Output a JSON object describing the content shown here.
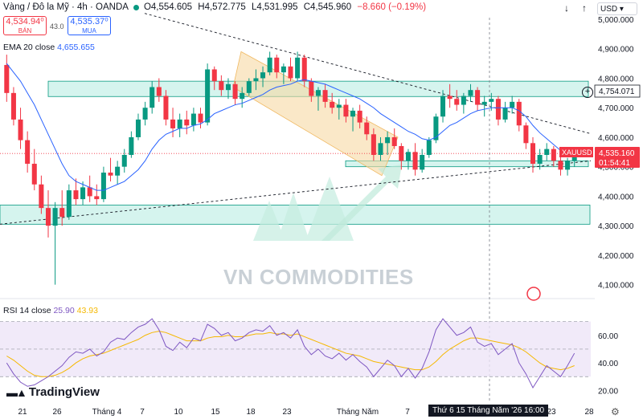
{
  "header": {
    "symbol": "Vàng / Đô la Mỹ · 4h · OANDA",
    "ohlc": {
      "o": "O4,554.605",
      "h": "H4,572.775",
      "l": "L4,531.995",
      "c": "C4,545.960",
      "chg": "−8.660 (−0.19%)"
    }
  },
  "trade": {
    "sell_price": "4,534.94⁰",
    "sell_label": "BÁN",
    "spread": "43.0",
    "buy_price": "4,535.37⁰",
    "buy_label": "MUA"
  },
  "toolbar": {
    "down_icon": "↓",
    "up_icon": "↑",
    "currency": "USD"
  },
  "ema_legend": {
    "label": "EMA 20 close",
    "value": "4,655.655"
  },
  "rsi_legend": {
    "label": "RSI 14 close",
    "value": "25.90",
    "ma_value": "43.93"
  },
  "price_axis": {
    "ticks": [
      "5,000.000",
      "4,900.000",
      "4,800.000",
      "4,700.000",
      "4,600.000",
      "4,500.000",
      "4,400.000",
      "4,300.000",
      "4,200.000",
      "4,100.000"
    ]
  },
  "badges": {
    "level": "4,754.071",
    "symbol": "XAUUSD",
    "price": "4,535.160",
    "countdown": "01:54:41"
  },
  "rsi_axis": {
    "ticks": [
      "60.00",
      "40.00",
      "20.00"
    ]
  },
  "time_axis": {
    "labels": [
      "21",
      "26",
      "Tháng 4",
      "7",
      "10",
      "15",
      "18",
      "23",
      "Tháng Năm",
      "7",
      "23",
      "28"
    ],
    "cursor_label": "Thứ 6 15 Tháng Năm '26   16:00"
  },
  "watermark": "VN COMMODITIES",
  "brand": "TradingView",
  "colors": {
    "up": "#089981",
    "down": "#f23645",
    "ema": "#2962ff",
    "zone": "#b2ebe0",
    "channel": "#f7d9a3",
    "rsi": "#7e57c2",
    "rsi_ma": "#f5b800",
    "rsi_band": "#ede5f7"
  },
  "chart_data": {
    "type": "candlestick",
    "symbol": "XAUUSD",
    "timeframe": "4h",
    "y_range": [
      4080,
      5000
    ],
    "rsi_range": [
      15,
      75
    ],
    "candles": [
      [
        4845,
        4880,
        4720,
        4750
      ],
      [
        4750,
        4770,
        4640,
        4660
      ],
      [
        4660,
        4700,
        4560,
        4590
      ],
      [
        4590,
        4620,
        4480,
        4510
      ],
      [
        4510,
        4560,
        4420,
        4440
      ],
      [
        4440,
        4470,
        4340,
        4360
      ],
      [
        4360,
        4420,
        4260,
        4300
      ],
      [
        4300,
        4380,
        4100,
        4360
      ],
      [
        4360,
        4420,
        4300,
        4330
      ],
      [
        4330,
        4440,
        4320,
        4420
      ],
      [
        4420,
        4460,
        4370,
        4390
      ],
      [
        4390,
        4450,
        4370,
        4430
      ],
      [
        4430,
        4470,
        4380,
        4400
      ],
      [
        4400,
        4440,
        4370,
        4390
      ],
      [
        4390,
        4500,
        4380,
        4480
      ],
      [
        4480,
        4530,
        4450,
        4470
      ],
      [
        4470,
        4520,
        4440,
        4500
      ],
      [
        4500,
        4560,
        4480,
        4540
      ],
      [
        4540,
        4620,
        4530,
        4600
      ],
      [
        4600,
        4680,
        4590,
        4660
      ],
      [
        4660,
        4720,
        4640,
        4700
      ],
      [
        4700,
        4790,
        4680,
        4770
      ],
      [
        4770,
        4800,
        4720,
        4740
      ],
      [
        4740,
        4760,
        4640,
        4660
      ],
      [
        4660,
        4700,
        4600,
        4630
      ],
      [
        4630,
        4680,
        4600,
        4660
      ],
      [
        4660,
        4690,
        4610,
        4640
      ],
      [
        4640,
        4700,
        4620,
        4680
      ],
      [
        4680,
        4700,
        4630,
        4650
      ],
      [
        4650,
        4850,
        4640,
        4830
      ],
      [
        4830,
        4840,
        4760,
        4790
      ],
      [
        4790,
        4810,
        4740,
        4760
      ],
      [
        4760,
        4800,
        4730,
        4780
      ],
      [
        4780,
        4790,
        4710,
        4730
      ],
      [
        4730,
        4770,
        4700,
        4750
      ],
      [
        4750,
        4800,
        4740,
        4790
      ],
      [
        4790,
        4830,
        4760,
        4800
      ],
      [
        4800,
        4840,
        4770,
        4820
      ],
      [
        4820,
        4890,
        4810,
        4870
      ],
      [
        4870,
        4880,
        4800,
        4820
      ],
      [
        4820,
        4850,
        4780,
        4840
      ],
      [
        4840,
        4870,
        4790,
        4800
      ],
      [
        4800,
        4890,
        4790,
        4870
      ],
      [
        4870,
        4880,
        4770,
        4790
      ],
      [
        4790,
        4800,
        4720,
        4740
      ],
      [
        4740,
        4770,
        4690,
        4760
      ],
      [
        4760,
        4780,
        4700,
        4720
      ],
      [
        4720,
        4750,
        4680,
        4700
      ],
      [
        4700,
        4730,
        4660,
        4710
      ],
      [
        4710,
        4730,
        4650,
        4670
      ],
      [
        4670,
        4700,
        4620,
        4690
      ],
      [
        4690,
        4710,
        4630,
        4650
      ],
      [
        4650,
        4670,
        4590,
        4610
      ],
      [
        4610,
        4630,
        4520,
        4540
      ],
      [
        4540,
        4600,
        4520,
        4580
      ],
      [
        4580,
        4620,
        4540,
        4600
      ],
      [
        4600,
        4630,
        4560,
        4570
      ],
      [
        4570,
        4580,
        4490,
        4520
      ],
      [
        4520,
        4560,
        4490,
        4550
      ],
      [
        4550,
        4580,
        4470,
        4490
      ],
      [
        4490,
        4560,
        4480,
        4540
      ],
      [
        4540,
        4600,
        4530,
        4590
      ],
      [
        4590,
        4680,
        4580,
        4670
      ],
      [
        4670,
        4760,
        4650,
        4740
      ],
      [
        4740,
        4780,
        4700,
        4730
      ],
      [
        4730,
        4760,
        4690,
        4710
      ],
      [
        4710,
        4750,
        4680,
        4740
      ],
      [
        4740,
        4780,
        4720,
        4760
      ],
      [
        4760,
        4770,
        4690,
        4710
      ],
      [
        4710,
        4740,
        4670,
        4720
      ],
      [
        4720,
        4750,
        4690,
        4730
      ],
      [
        4730,
        4740,
        4640,
        4660
      ],
      [
        4660,
        4720,
        4650,
        4700
      ],
      [
        4700,
        4740,
        4680,
        4720
      ],
      [
        4720,
        4730,
        4620,
        4640
      ],
      [
        4640,
        4650,
        4560,
        4580
      ],
      [
        4580,
        4600,
        4480,
        4510
      ],
      [
        4510,
        4560,
        4490,
        4540
      ],
      [
        4540,
        4580,
        4520,
        4560
      ],
      [
        4560,
        4570,
        4500,
        4520
      ],
      [
        4520,
        4540,
        4470,
        4490
      ],
      [
        4490,
        4530,
        4470,
        4520
      ],
      [
        4520,
        4560,
        4500,
        4545
      ]
    ],
    "ema": [
      4850,
      4820,
      4790,
      4750,
      4710,
      4660,
      4610,
      4560,
      4510,
      4470,
      4450,
      4440,
      4430,
      4420,
      4420,
      4430,
      4440,
      4450,
      4470,
      4490,
      4520,
      4560,
      4590,
      4610,
      4620,
      4630,
      4630,
      4640,
      4645,
      4660,
      4680,
      4690,
      4700,
      4710,
      4715,
      4725,
      4735,
      4745,
      4760,
      4770,
      4775,
      4780,
      4790,
      4795,
      4790,
      4785,
      4780,
      4770,
      4760,
      4750,
      4740,
      4730,
      4715,
      4700,
      4680,
      4665,
      4650,
      4635,
      4620,
      4610,
      4595,
      4590,
      4600,
      4620,
      4640,
      4650,
      4665,
      4680,
      4690,
      4695,
      4700,
      4700,
      4700,
      4700,
      4690,
      4670,
      4640,
      4615,
      4595,
      4575,
      4555,
      4545,
      4545
    ],
    "rsi": [
      40,
      32,
      26,
      23,
      24,
      27,
      30,
      34,
      38,
      44,
      48,
      47,
      50,
      45,
      48,
      55,
      58,
      57,
      62,
      66,
      68,
      72,
      64,
      52,
      49,
      55,
      51,
      58,
      56,
      68,
      65,
      60,
      62,
      56,
      58,
      62,
      64,
      63,
      67,
      60,
      62,
      58,
      64,
      52,
      46,
      50,
      45,
      43,
      47,
      42,
      46,
      41,
      37,
      30,
      36,
      42,
      38,
      30,
      36,
      29,
      36,
      48,
      64,
      72,
      66,
      60,
      62,
      66,
      55,
      52,
      54,
      46,
      50,
      54,
      40,
      32,
      22,
      30,
      38,
      34,
      30,
      38,
      47
    ],
    "rsi_ma": [
      45,
      42,
      38,
      34,
      31,
      30,
      30,
      31,
      33,
      36,
      40,
      43,
      45,
      46,
      47,
      49,
      51,
      53,
      55,
      57,
      60,
      62,
      63,
      62,
      60,
      58,
      56,
      56,
      56,
      58,
      59,
      59,
      60,
      59,
      59,
      60,
      61,
      61,
      62,
      61,
      61,
      60,
      61,
      59,
      57,
      55,
      53,
      51,
      49,
      47,
      46,
      45,
      43,
      41,
      40,
      39,
      38,
      37,
      36,
      35,
      35,
      37,
      41,
      46,
      50,
      53,
      56,
      58,
      58,
      57,
      56,
      55,
      54,
      53,
      51,
      48,
      44,
      40,
      37,
      36,
      35,
      36,
      38
    ]
  }
}
